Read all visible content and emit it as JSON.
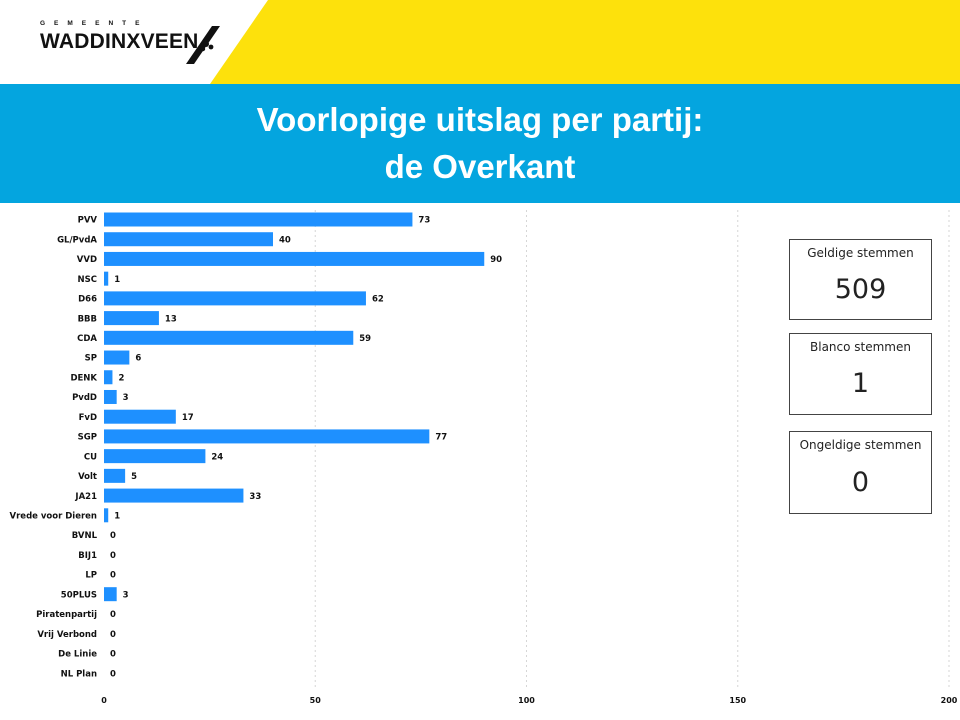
{
  "logo": {
    "top_text": "GEMEENTE",
    "name": "WADDINXVEEN"
  },
  "title": {
    "line1": "Voorlopige uitslag per partij:",
    "line2": "de Overkant"
  },
  "colors": {
    "bar": "#1e90ff",
    "header_yellow": "#fde10c",
    "title_band": "#04a5df"
  },
  "kpis": [
    {
      "label": "Geldige stemmen",
      "value": "509"
    },
    {
      "label": "Blanco stemmen",
      "value": "1"
    },
    {
      "label": "Ongeldige stemmen",
      "value": "0"
    }
  ],
  "chart_data": {
    "type": "bar",
    "orientation": "horizontal",
    "categories": [
      "PVV",
      "GL/PvdA",
      "VVD",
      "NSC",
      "D66",
      "BBB",
      "CDA",
      "SP",
      "DENK",
      "PvdD",
      "FvD",
      "SGP",
      "CU",
      "Volt",
      "JA21",
      "Vrede voor Dieren",
      "BVNL",
      "BIJ1",
      "LP",
      "50PLUS",
      "Piratenpartij",
      "Vrij Verbond",
      "De Linie",
      "NL Plan"
    ],
    "values": [
      73,
      40,
      90,
      1,
      62,
      13,
      59,
      6,
      2,
      3,
      17,
      77,
      24,
      5,
      33,
      1,
      0,
      0,
      0,
      3,
      0,
      0,
      0,
      0
    ],
    "xlim": [
      0,
      200
    ],
    "xticks": [
      0,
      50,
      100,
      150,
      200
    ],
    "grid": true
  }
}
